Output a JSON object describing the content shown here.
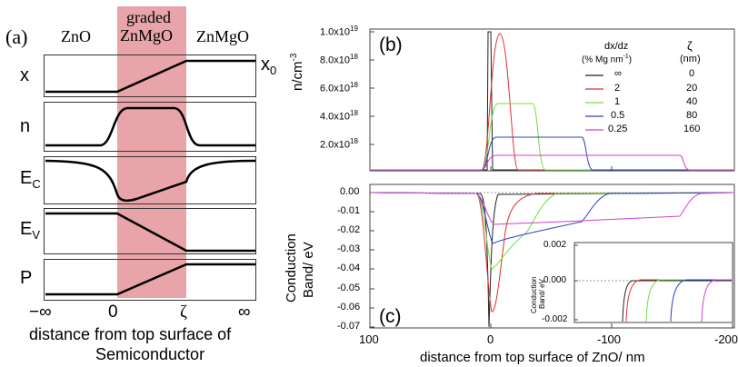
{
  "left_panel": {
    "panel_label": "(a)",
    "region_left": "ZnO",
    "region_middle_line1": "graded",
    "region_middle_line2": "ZnMgO",
    "region_right": "ZnMgO",
    "x0_label": "x",
    "x0_sub": "0",
    "rows": [
      {
        "label": "x",
        "sub": ""
      },
      {
        "label": "n",
        "sub": ""
      },
      {
        "label": "E",
        "sub": "C"
      },
      {
        "label": "E",
        "sub": "V"
      },
      {
        "label": "P",
        "sub": ""
      }
    ],
    "ticks": [
      "−∞",
      "0",
      "ζ",
      "∞"
    ],
    "xlabel_line1": "distance from top surface of",
    "xlabel_line2": "Semiconductor",
    "shade_color": "#e8a4a8"
  },
  "right_panel": {
    "label_b": "(b)",
    "label_c": "(c)",
    "ylabel_b": "n/cm",
    "ylabel_b_sup": "-3",
    "ylabel_c_line1": "Conduction",
    "ylabel_c_line2": "Band/ eV",
    "xlabel": "distance from top surface of ZnO/ nm",
    "x_ticks": [
      "100",
      "0",
      "-100",
      "-200"
    ],
    "y_ticks_b": [
      "1.0x10",
      "8.0x10",
      "6.0x10",
      "4.0x10",
      "2.0x10"
    ],
    "y_ticks_b_exp": [
      "19",
      "18",
      "18",
      "18",
      "18"
    ],
    "y_ticks_c": [
      "0.00",
      "-0.01",
      "-0.02",
      "-0.03",
      "-0.04",
      "-0.05",
      "-0.06",
      "-0.07"
    ],
    "legend": {
      "head_dxdz_line1": "dx/dz",
      "head_dxdz_line2": "(% Mg nm",
      "head_dxdz_sup": "-1",
      "head_dxdz_close": ")",
      "head_zeta_line1": "ζ",
      "head_zeta_line2": "(nm)",
      "entries": [
        {
          "dxdz": "∞",
          "zeta": "0",
          "color": "#222222"
        },
        {
          "dxdz": "2",
          "zeta": "20",
          "color": "#e03030"
        },
        {
          "dxdz": "1",
          "zeta": "40",
          "color": "#70e040"
        },
        {
          "dxdz": "0.5",
          "zeta": "80",
          "color": "#3040c0"
        },
        {
          "dxdz": "0.25",
          "zeta": "160",
          "color": "#d040d0"
        }
      ]
    },
    "inset": {
      "ylabel_line1": "Conduction",
      "ylabel_line2": "Band/ eV",
      "y_ticks": [
        "0.002",
        "0.000",
        "-0.002"
      ]
    }
  }
}
